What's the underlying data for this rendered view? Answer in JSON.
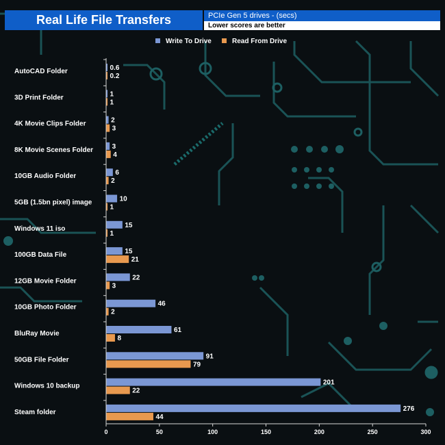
{
  "header": {
    "title": "Real Life File Transfers",
    "subtitle": "PCIe Gen 5  drives - (secs)",
    "note": "Lower scores are better"
  },
  "colors": {
    "write": "#7b97d4",
    "read": "#e8994f",
    "header_blue": "#0f5ec8",
    "background": "#0a0f12",
    "circuit": "#1f6e6e"
  },
  "chart_data": {
    "type": "bar",
    "orientation": "horizontal",
    "categories": [
      "AutoCAD Folder",
      "3D Print Folder",
      "4K Movie Clips Folder",
      "8K Movie Scenes Folder",
      "10GB Audio Folder",
      "5GB (1.5bn pixel) image",
      "Windows 11 iso",
      "100GB Data File",
      "12GB Movie Folder",
      "10GB Photo Folder",
      "BluRay Movie",
      "50GB File Folder",
      "Windows 10 backup",
      "Steam folder"
    ],
    "series": [
      {
        "name": "Write To  Drive",
        "values": [
          0.6,
          1,
          2,
          3,
          6,
          10,
          15,
          15,
          22,
          46,
          61,
          91,
          201,
          276
        ]
      },
      {
        "name": "Read From  Drive",
        "values": [
          0.2,
          1,
          3,
          4,
          2,
          1,
          1,
          21,
          3,
          2,
          8,
          79,
          22,
          44
        ]
      }
    ],
    "xlim": [
      0,
      300
    ],
    "xticks": [
      0,
      50,
      100,
      150,
      200,
      250,
      300
    ],
    "legend_position": "top-center",
    "grid": false
  }
}
